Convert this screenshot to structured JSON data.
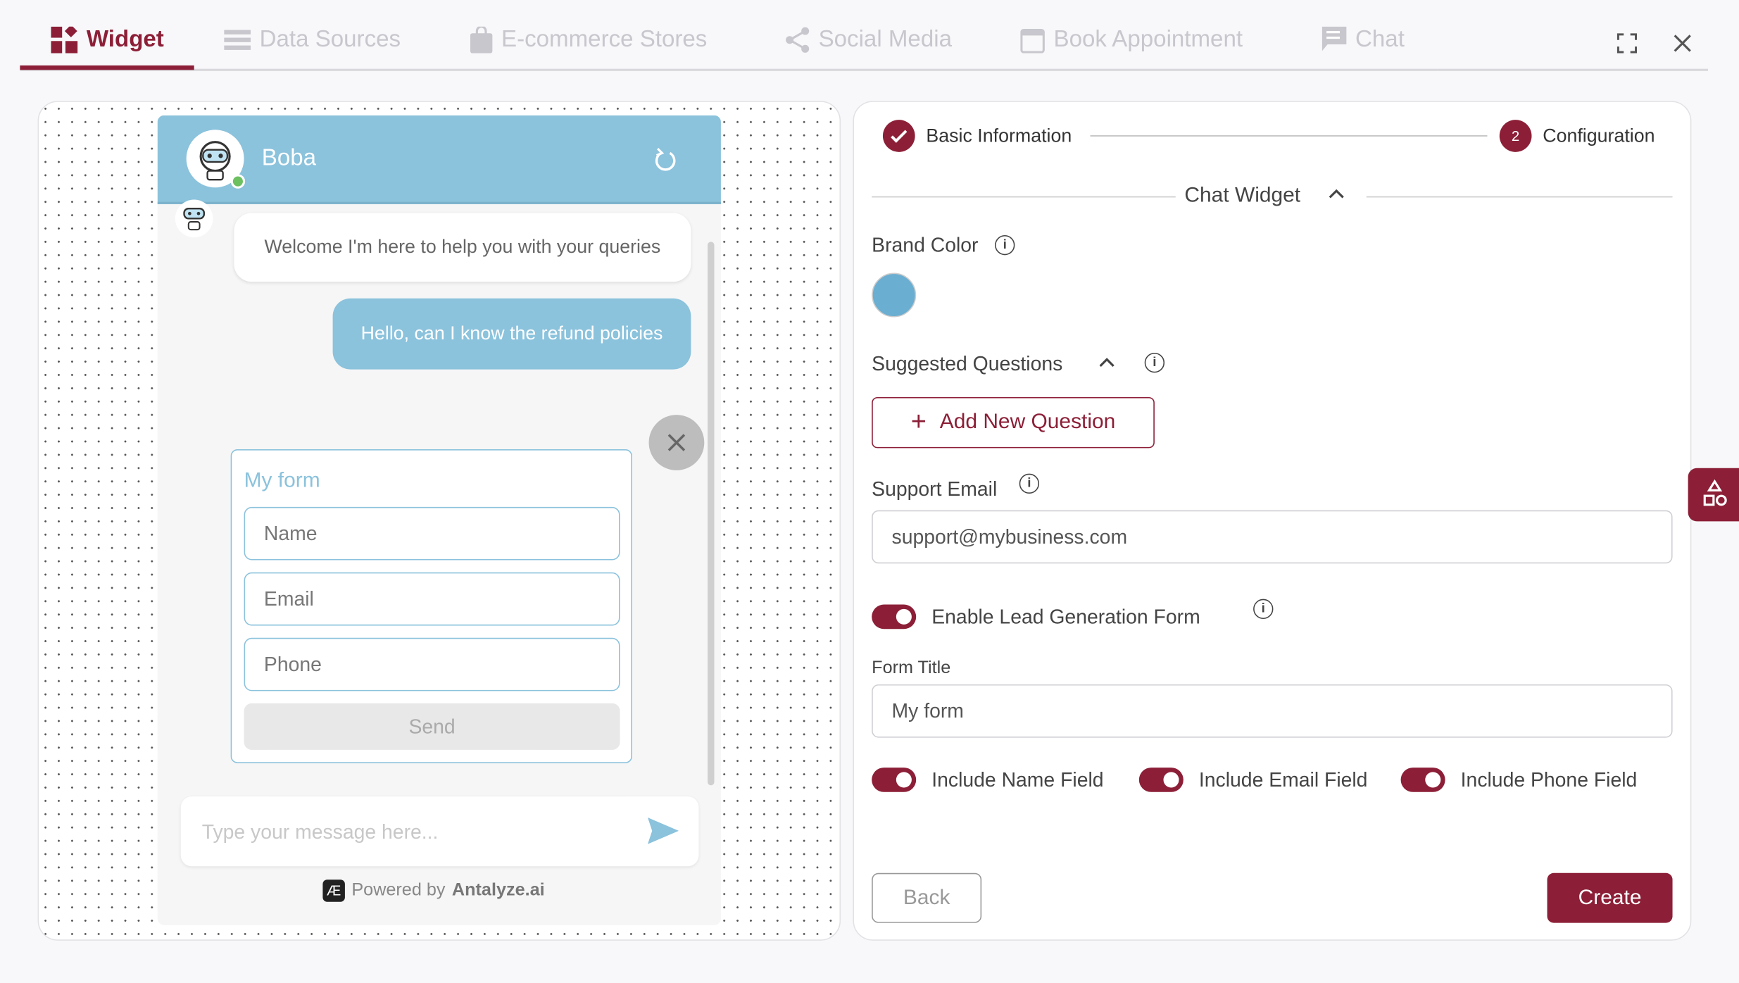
{
  "tabs": [
    {
      "label": "Widget",
      "icon": "widget-icon",
      "active": true
    },
    {
      "label": "Data Sources",
      "icon": "list-icon"
    },
    {
      "label": "E-commerce Stores",
      "icon": "shopping-bag-icon"
    },
    {
      "label": "Social Media",
      "icon": "share-icon"
    },
    {
      "label": "Book Appointment",
      "icon": "calendar-icon"
    },
    {
      "label": "Chat",
      "icon": "chat-icon"
    }
  ],
  "colors": {
    "accent": "#8c1f37",
    "brand": "#8bc2dc",
    "online": "#6cc060"
  },
  "chat": {
    "bot_name": "Boba",
    "messages": [
      {
        "from": "bot",
        "text": "Welcome I'm here to help you with your queries"
      },
      {
        "from": "user",
        "text": "Hello, can I know the refund policies"
      }
    ],
    "form": {
      "title": "My form",
      "fields": [
        "Name",
        "Email",
        "Phone"
      ],
      "send": "Send"
    },
    "input_placeholder": "Type your message here...",
    "powered_by": "Powered by",
    "brand_name": "Antalyze.ai",
    "logo_text": "Æ"
  },
  "config": {
    "steps": [
      {
        "label": "Basic Information",
        "done": true
      },
      {
        "label": "Configuration",
        "number": "2"
      }
    ],
    "section": "Chat Widget",
    "brand_color_label": "Brand Color",
    "brand_color": "#6aaed2",
    "suggested_label": "Suggested Questions",
    "add_question": "Add New Question",
    "support_email_label": "Support Email",
    "support_email": "support@mybusiness.com",
    "lead_gen_label": "Enable Lead Generation Form",
    "form_title_label": "Form Title",
    "form_title": "My form",
    "include": [
      "Include Name Field",
      "Include Email Field",
      "Include Phone Field"
    ],
    "back": "Back",
    "create": "Create"
  }
}
